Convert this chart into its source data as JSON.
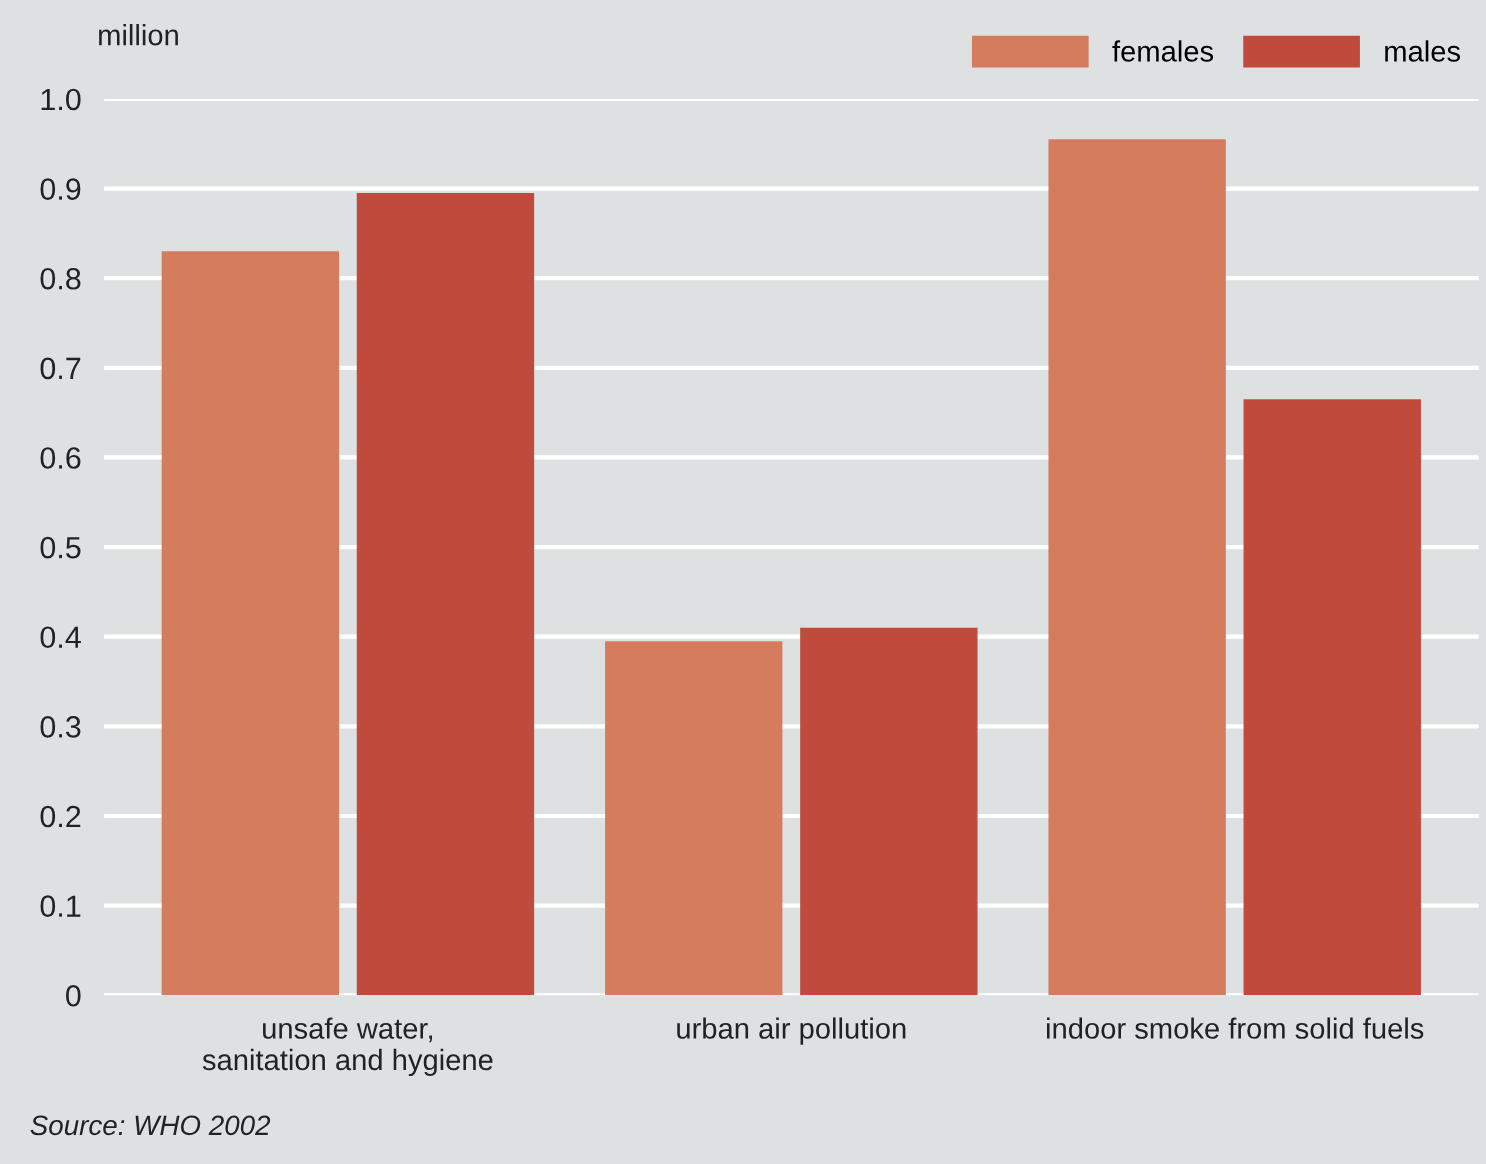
{
  "chart_data": {
    "type": "bar",
    "ylabel": "million",
    "categories": [
      "unsafe water,\nsanitation and hygiene",
      "urban air pollution",
      "indoor smoke from solid fuels"
    ],
    "series": [
      {
        "name": "females",
        "color": "#d57c5e",
        "values": [
          0.83,
          0.395,
          0.955
        ]
      },
      {
        "name": "males",
        "color": "#c04a3c",
        "values": [
          0.895,
          0.41,
          0.665
        ]
      }
    ],
    "ylim": [
      0,
      1.0
    ],
    "yticks": [
      0,
      0.1,
      0.2,
      0.3,
      0.4,
      0.5,
      0.6,
      0.7,
      0.8,
      0.9,
      {
        "value": 1.0,
        "label": "1.0"
      }
    ],
    "grid": "y",
    "legend": "top right",
    "annotations": [
      "Source: WHO 2002"
    ]
  }
}
